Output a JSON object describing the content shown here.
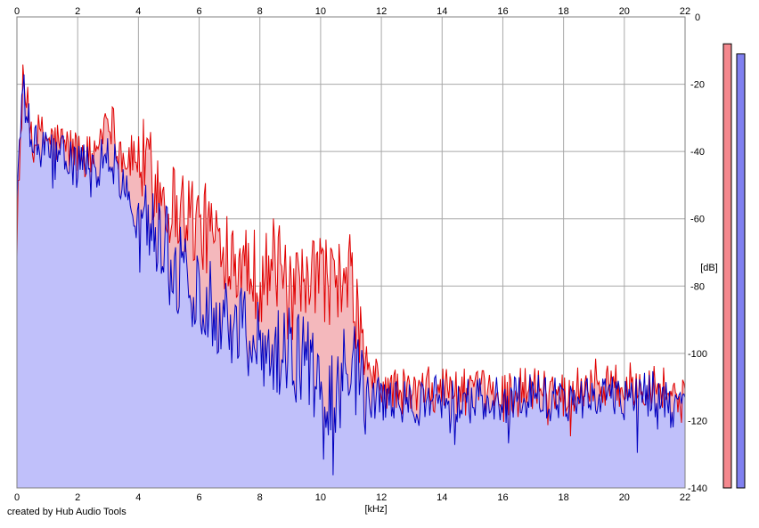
{
  "chart_data": {
    "type": "area",
    "xlabel": "[kHz]",
    "ylabel": "[dB]",
    "xlim": [
      0,
      22
    ],
    "ylim": [
      -140,
      0
    ],
    "xticks": [
      "0",
      "2",
      "4",
      "6",
      "8",
      "10",
      "12",
      "14",
      "16",
      "18",
      "20",
      "22"
    ],
    "yticks": [
      "0",
      "-20",
      "-40",
      "-60",
      "-80",
      "-100",
      "-120",
      "-140"
    ],
    "grid": true,
    "series": [
      {
        "channel": "left",
        "color": "#e00000",
        "fill": "#f4b8bc",
        "x": [
          0,
          0.2,
          0.5,
          1,
          1.5,
          2,
          2.5,
          3,
          3.5,
          4,
          4.5,
          5,
          5.5,
          6,
          6.5,
          7,
          7.5,
          8,
          8.5,
          9,
          9.5,
          10,
          10.5,
          11,
          11.5,
          12,
          13,
          14,
          15,
          16,
          17,
          18,
          19,
          20,
          21,
          22
        ],
        "values": [
          -58,
          -20,
          -35,
          -36,
          -38,
          -40,
          -42,
          -28,
          -42,
          -42,
          -48,
          -55,
          -57,
          -62,
          -65,
          -68,
          -72,
          -78,
          -72,
          -85,
          -82,
          -76,
          -80,
          -78,
          -104,
          -110,
          -112,
          -110,
          -112,
          -112,
          -110,
          -112,
          -108,
          -110,
          -108,
          -115
        ]
      },
      {
        "channel": "right",
        "color": "#0000c0",
        "fill": "#c0c0fa",
        "x": [
          0,
          0.2,
          0.5,
          1,
          1.5,
          2,
          2.5,
          3,
          3.5,
          4,
          4.5,
          5,
          5.5,
          6,
          6.5,
          7,
          7.5,
          8,
          8.5,
          9,
          9.5,
          10,
          10.5,
          11,
          11.5,
          12,
          13,
          14,
          15,
          16,
          17,
          18,
          19,
          20,
          21,
          22
        ],
        "values": [
          -52,
          -22,
          -38,
          -40,
          -42,
          -44,
          -46,
          -40,
          -50,
          -64,
          -60,
          -70,
          -78,
          -82,
          -85,
          -90,
          -92,
          -96,
          -98,
          -100,
          -102,
          -110,
          -112,
          -100,
          -114,
          -114,
          -115,
          -113,
          -114,
          -114,
          -112,
          -114,
          -112,
          -113,
          -112,
          -118
        ]
      }
    ],
    "level_meters": [
      {
        "channel": "left",
        "color": "#f4888e",
        "value_db": -8
      },
      {
        "channel": "right",
        "color": "#8080f0",
        "value_db": -11
      }
    ]
  },
  "footer": {
    "credit": "created by Hub Audio Tools"
  }
}
